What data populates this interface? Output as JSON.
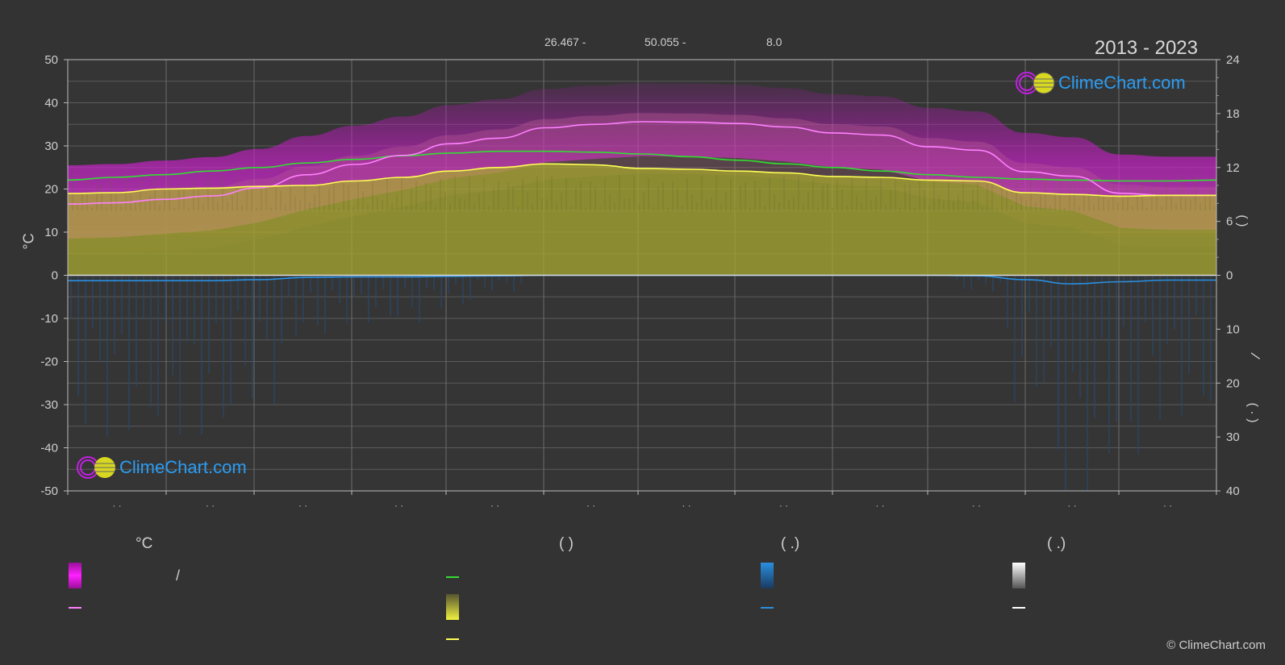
{
  "header": {
    "coord_a": "26.467 -",
    "coord_b": "50.055 -",
    "coord_c": "8.0",
    "years": "2013 - 2023"
  },
  "axes": {
    "left_unit": "°C",
    "left_ticks": [
      "50",
      "40",
      "30",
      "20",
      "10",
      "0",
      "-10",
      "-20",
      "-30",
      "-40",
      "-50"
    ],
    "right_top_ticks": [
      "24",
      "18",
      "12",
      "6",
      "0"
    ],
    "right_bottom_ticks": [
      "10",
      "20",
      "30",
      "40"
    ],
    "right_paren_1": "(      )",
    "right_slash": "/",
    "right_paren_2": "(  ·  )",
    "x_tick_label": "· ·"
  },
  "logos": {
    "text": "ClimeChart.com"
  },
  "legend": {
    "col1_head": "°C",
    "col1_slash": "/",
    "col2_head": "(          )",
    "col3_head": "(   .)",
    "col4_head": "(   .)"
  },
  "footer": {
    "copyright": "© ClimeChart.com"
  },
  "colors": {
    "background": "#333333",
    "max_temp_band": "#d020d0",
    "mean_max_line": "#ff80ff",
    "daylight_line": "#33dd33",
    "sunshine_fill": "#a8a830",
    "sunshine_line": "#ffff55",
    "precip_line": "#2a8fe0",
    "logo_text": "#2a9df4"
  },
  "chart_data": {
    "type": "line",
    "title": "",
    "xlabel": "",
    "ylabel": "°C",
    "ylim": [
      -50,
      50
    ],
    "y2_upper_lim": [
      0,
      24
    ],
    "y2_lower_lim": [
      0,
      40
    ],
    "x": [
      0,
      0.5,
      1,
      1.5,
      2,
      2.5,
      3,
      3.5,
      4,
      4.5,
      5,
      5.5,
      6,
      6.5,
      7,
      7.5,
      8,
      8.5,
      9,
      9.5,
      10,
      10.5,
      11,
      11.5,
      12
    ],
    "series": [
      {
        "key": "max_temp_mean",
        "axis": "left_celsius",
        "values": [
          16.5,
          16.8,
          17.6,
          18.4,
          20.3,
          23.3,
          25.7,
          27.8,
          30.5,
          31.8,
          34.2,
          35.0,
          35.6,
          35.5,
          35.2,
          34.4,
          33.0,
          32.5,
          29.8,
          29.0,
          24.0,
          23.0,
          19.0,
          18.5,
          18.5
        ]
      },
      {
        "key": "daylight_hours",
        "axis": "right_hours",
        "values": [
          10.6,
          10.9,
          11.2,
          11.6,
          12.0,
          12.5,
          12.9,
          13.3,
          13.6,
          13.8,
          13.8,
          13.7,
          13.5,
          13.2,
          12.8,
          12.4,
          12.0,
          11.6,
          11.2,
          10.9,
          10.7,
          10.6,
          10.5,
          10.5,
          10.6
        ]
      },
      {
        "key": "sunshine_hours",
        "axis": "right_hours",
        "values": [
          9.1,
          9.2,
          9.6,
          9.7,
          9.9,
          10.0,
          10.5,
          10.9,
          11.6,
          12.0,
          12.4,
          12.3,
          11.9,
          11.8,
          11.6,
          11.4,
          11.0,
          10.9,
          10.6,
          10.5,
          9.2,
          9.0,
          8.8,
          8.9,
          8.9
        ]
      },
      {
        "key": "precipitation_mm",
        "axis": "right_mm",
        "values": [
          1.0,
          1.0,
          1.0,
          1.0,
          0.8,
          0.4,
          0.3,
          0.3,
          0.2,
          0.1,
          0.0,
          0.0,
          0.0,
          0.0,
          0.0,
          0.0,
          0.0,
          0.0,
          0.0,
          0.1,
          0.8,
          1.6,
          1.2,
          0.9,
          0.9
        ]
      }
    ]
  }
}
